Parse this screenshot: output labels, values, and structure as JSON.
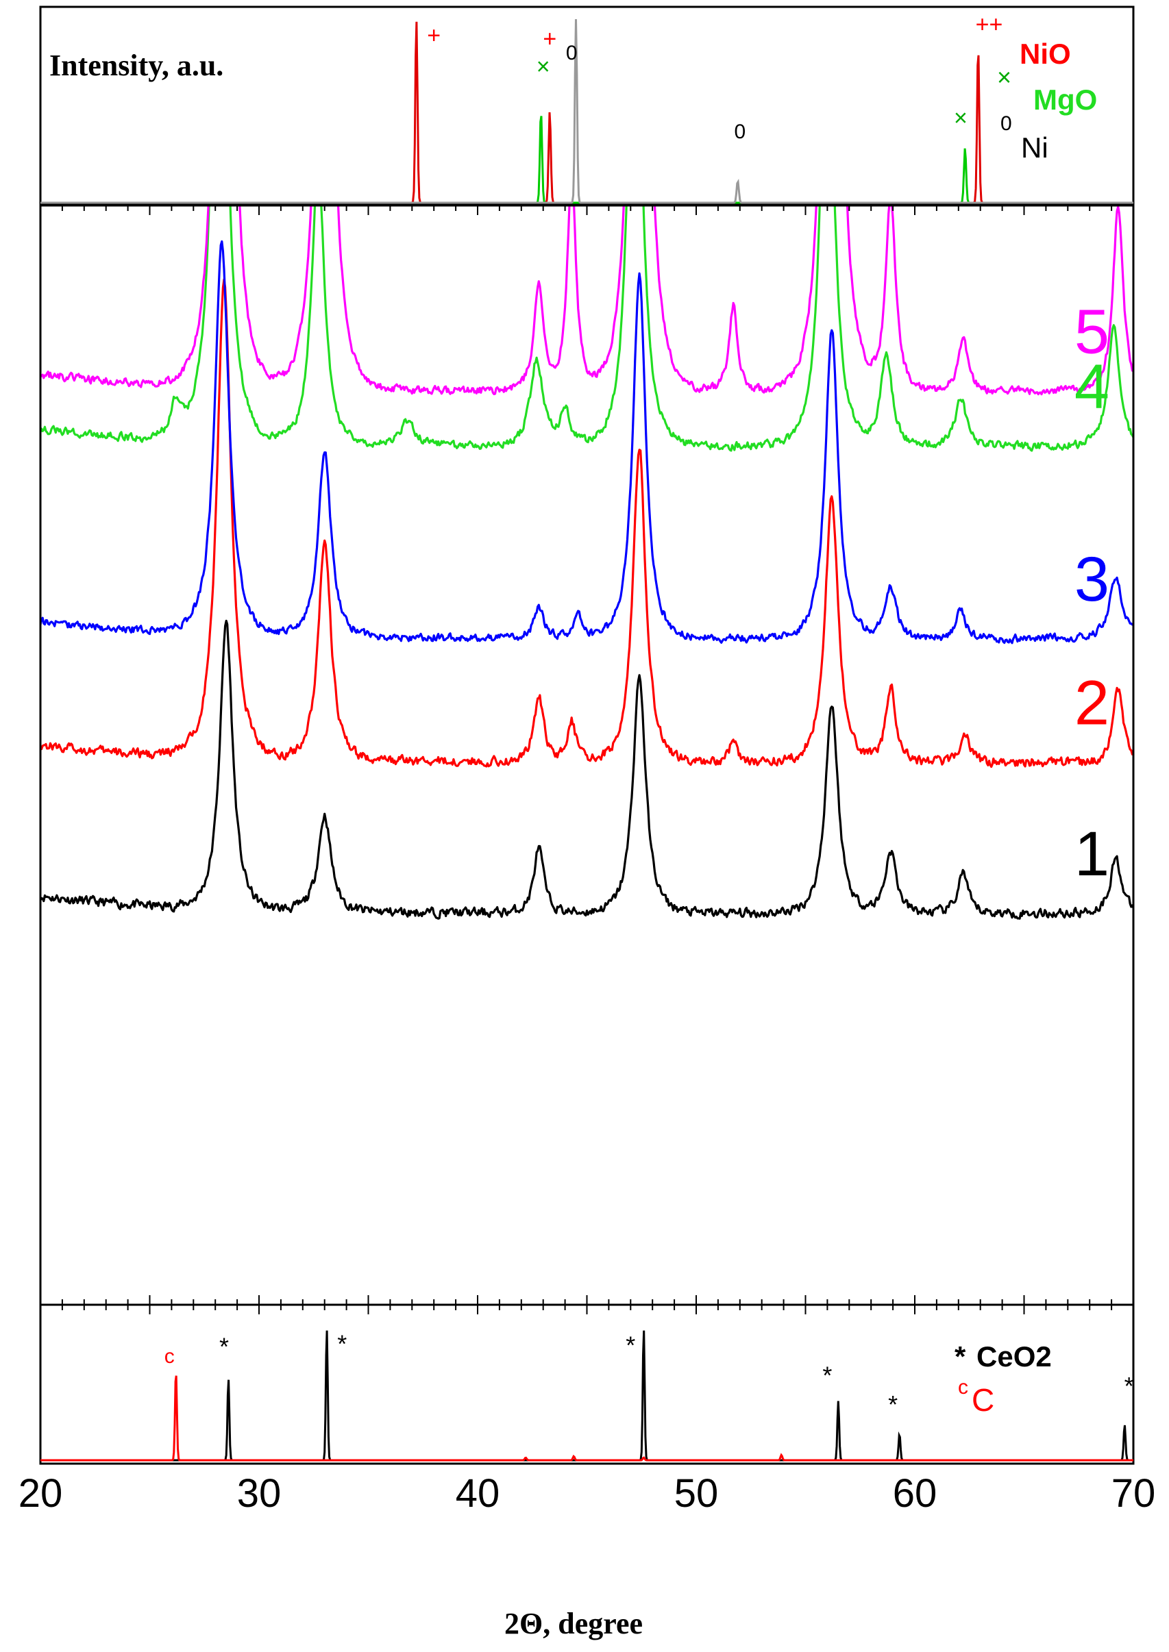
{
  "chart_data": {
    "type": "line",
    "xlabel": "2Θ, degree",
    "xlim": [
      20,
      70
    ],
    "x_ticks": [
      "20",
      "30",
      "40",
      "50",
      "60",
      "70"
    ],
    "panels": [
      {
        "id": "reference-top",
        "ylabel": "Intensity, a.u.",
        "legend": [
          {
            "symbol": "+",
            "name": "NiO",
            "color": "#ff0000"
          },
          {
            "symbol": "×",
            "name": "MgO",
            "color": "#00cc00"
          },
          {
            "symbol": "0",
            "name": "Ni",
            "color": "#000000"
          }
        ],
        "series": [
          {
            "name": "NiO",
            "color": "#e00000",
            "peaks": [
              {
                "x": 37.2,
                "h": 1.0
              },
              {
                "x": 43.3,
                "h": 0.5
              },
              {
                "x": 62.9,
                "h": 0.85
              }
            ]
          },
          {
            "name": "MgO",
            "color": "#00cc00",
            "peaks": [
              {
                "x": 42.9,
                "h": 0.5
              },
              {
                "x": 62.3,
                "h": 0.3
              }
            ]
          },
          {
            "name": "Ni",
            "color": "#999999",
            "peaks": [
              {
                "x": 44.5,
                "h": 1.0
              },
              {
                "x": 51.9,
                "h": 0.12
              }
            ]
          }
        ],
        "markers": [
          {
            "text": "+",
            "x": 38.0,
            "level": 0.87,
            "color": "#ff0000"
          },
          {
            "text": "+",
            "x": 43.3,
            "level": 0.85,
            "color": "#ff0000"
          },
          {
            "text": "×",
            "x": 43.0,
            "level": 0.7,
            "color": "#00aa00"
          },
          {
            "text": "0",
            "x": 44.3,
            "level": 0.78,
            "color": "#000000"
          },
          {
            "text": "0",
            "x": 52.0,
            "level": 0.35,
            "color": "#000000"
          },
          {
            "text": "×",
            "x": 62.1,
            "level": 0.42,
            "color": "#00aa00"
          },
          {
            "text": "++",
            "x": 63.4,
            "level": 0.93,
            "color": "#ff0000"
          }
        ]
      },
      {
        "id": "main",
        "series": [
          {
            "name": "1",
            "label": "1",
            "color": "#000000",
            "baseline": 5.7,
            "noise": 0.12,
            "peaks": [
              {
                "x": 28.5,
                "h": 4.2,
                "w": 0.45
              },
              {
                "x": 33.0,
                "h": 1.4,
                "w": 0.45
              },
              {
                "x": 42.8,
                "h": 0.95,
                "w": 0.35
              },
              {
                "x": 47.4,
                "h": 3.45,
                "w": 0.45
              },
              {
                "x": 56.2,
                "h": 3.05,
                "w": 0.45
              },
              {
                "x": 58.9,
                "h": 0.9,
                "w": 0.4
              },
              {
                "x": 62.2,
                "h": 0.6,
                "w": 0.35
              },
              {
                "x": 69.2,
                "h": 0.8,
                "w": 0.4
              }
            ]
          },
          {
            "name": "2",
            "label": "2",
            "color": "#ff0000",
            "baseline": 7.9,
            "noise": 0.12,
            "peaks": [
              {
                "x": 28.4,
                "h": 7.0,
                "w": 0.5
              },
              {
                "x": 33.0,
                "h": 3.2,
                "w": 0.45
              },
              {
                "x": 42.8,
                "h": 0.95,
                "w": 0.35
              },
              {
                "x": 44.3,
                "h": 0.6,
                "w": 0.3
              },
              {
                "x": 47.4,
                "h": 4.6,
                "w": 0.45
              },
              {
                "x": 51.7,
                "h": 0.3,
                "w": 0.3
              },
              {
                "x": 56.2,
                "h": 3.9,
                "w": 0.45
              },
              {
                "x": 58.9,
                "h": 1.1,
                "w": 0.35
              },
              {
                "x": 62.3,
                "h": 0.4,
                "w": 0.35
              },
              {
                "x": 69.3,
                "h": 1.05,
                "w": 0.35
              }
            ]
          },
          {
            "name": "3",
            "label": "3",
            "color": "#0000ff",
            "baseline": 9.7,
            "noise": 0.1,
            "peaks": [
              {
                "x": 28.3,
                "h": 5.7,
                "w": 0.5
              },
              {
                "x": 33.0,
                "h": 2.7,
                "w": 0.45
              },
              {
                "x": 42.8,
                "h": 0.45,
                "w": 0.35
              },
              {
                "x": 44.6,
                "h": 0.35,
                "w": 0.3
              },
              {
                "x": 47.4,
                "h": 5.3,
                "w": 0.45
              },
              {
                "x": 56.2,
                "h": 4.5,
                "w": 0.45
              },
              {
                "x": 58.9,
                "h": 0.75,
                "w": 0.4
              },
              {
                "x": 62.1,
                "h": 0.4,
                "w": 0.35
              },
              {
                "x": 69.2,
                "h": 0.9,
                "w": 0.45
              }
            ]
          },
          {
            "name": "4",
            "label": "4",
            "color": "#22dd22",
            "baseline": 12.5,
            "noise": 0.1,
            "peaks": [
              {
                "x": 28.2,
                "h": 9.0,
                "w": 0.5
              },
              {
                "x": 32.7,
                "h": 4.1,
                "w": 0.45
              },
              {
                "x": 26.2,
                "h": 0.5,
                "w": 0.35
              },
              {
                "x": 36.8,
                "h": 0.35,
                "w": 0.5
              },
              {
                "x": 42.7,
                "h": 1.25,
                "w": 0.45
              },
              {
                "x": 44.0,
                "h": 0.5,
                "w": 0.35
              },
              {
                "x": 47.2,
                "h": 8.0,
                "w": 0.45
              },
              {
                "x": 56.0,
                "h": 7.0,
                "w": 0.45
              },
              {
                "x": 58.7,
                "h": 1.35,
                "w": 0.4
              },
              {
                "x": 62.1,
                "h": 0.7,
                "w": 0.4
              },
              {
                "x": 69.1,
                "h": 1.75,
                "w": 0.4
              }
            ]
          },
          {
            "name": "5",
            "label": "5",
            "color": "#ff00ff",
            "baseline": 13.3,
            "noise": 0.1,
            "peaks": [
              {
                "x": 28.4,
                "h": 15.0,
                "w": 0.45
              },
              {
                "x": 33.0,
                "h": 12.0,
                "w": 0.45
              },
              {
                "x": 42.8,
                "h": 1.55,
                "w": 0.35
              },
              {
                "x": 44.3,
                "h": 3.2,
                "w": 0.3
              },
              {
                "x": 47.4,
                "h": 15.0,
                "w": 0.45
              },
              {
                "x": 51.7,
                "h": 1.25,
                "w": 0.3
              },
              {
                "x": 56.2,
                "h": 15.0,
                "w": 0.45
              },
              {
                "x": 58.9,
                "h": 2.8,
                "w": 0.35
              },
              {
                "x": 62.2,
                "h": 0.75,
                "w": 0.35
              },
              {
                "x": 69.3,
                "h": 2.7,
                "w": 0.35
              }
            ]
          }
        ]
      },
      {
        "id": "reference-bottom",
        "legend": [
          {
            "symbol": "*",
            "name": "CeO2",
            "color": "#000000"
          },
          {
            "symbol": "c",
            "name": "C",
            "color": "#ff0000"
          }
        ],
        "series": [
          {
            "name": "CeO2",
            "color": "#000000",
            "peaks": [
              {
                "x": 28.6,
                "h": 0.62
              },
              {
                "x": 33.1,
                "h": 1.0
              },
              {
                "x": 47.6,
                "h": 1.0
              },
              {
                "x": 56.5,
                "h": 0.45
              },
              {
                "x": 59.3,
                "h": 0.2
              },
              {
                "x": 69.6,
                "h": 0.27
              }
            ]
          },
          {
            "name": "C",
            "color": "#ff0000",
            "peaks": [
              {
                "x": 26.2,
                "h": 0.68
              },
              {
                "x": 42.2,
                "h": 0.02
              },
              {
                "x": 44.4,
                "h": 0.03
              },
              {
                "x": 47.6,
                "h": 0.02
              },
              {
                "x": 53.9,
                "h": 0.04
              }
            ]
          }
        ],
        "markers": [
          {
            "text": "c",
            "x": 25.9,
            "level": 0.74,
            "color": "#ff0000"
          },
          {
            "text": "*",
            "x": 28.4,
            "level": 0.8,
            "color": "#000000"
          },
          {
            "text": "*",
            "x": 33.8,
            "level": 0.82,
            "color": "#000000"
          },
          {
            "text": "*",
            "x": 47.0,
            "level": 0.81,
            "color": "#000000"
          },
          {
            "text": "*",
            "x": 56.0,
            "level": 0.58,
            "color": "#000000"
          },
          {
            "text": "*",
            "x": 59.0,
            "level": 0.36,
            "color": "#000000"
          },
          {
            "text": "*",
            "x": 69.8,
            "level": 0.5,
            "color": "#000000"
          }
        ]
      }
    ]
  }
}
